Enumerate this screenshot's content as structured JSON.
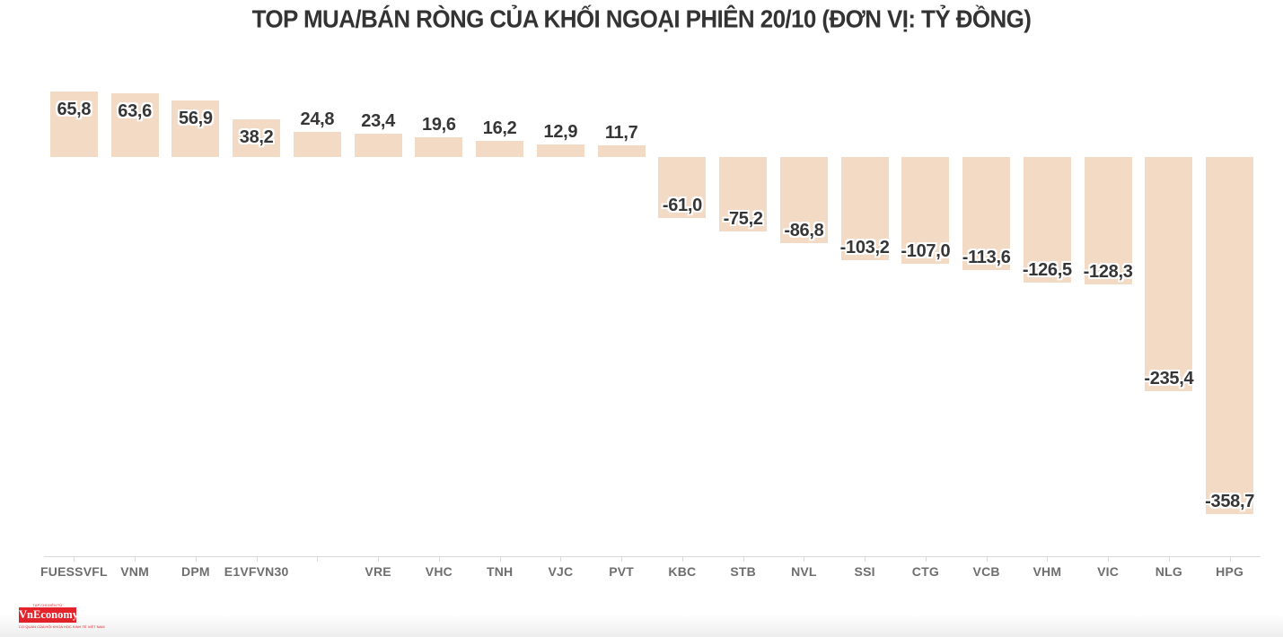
{
  "header": {
    "title": "TOP MUA/BÁN RÒNG CỦA KHỐI NGOẠI PHIÊN 20/10 (ĐƠN VỊ: TỶ ĐỒNG)"
  },
  "chart_data": {
    "type": "bar",
    "title": "TOP MUA/BÁN RÒNG CỦA KHỐI NGOẠI PHIÊN 20/10 (ĐƠN VỊ: TỶ ĐỒNG)",
    "unit": "tỷ đồng",
    "categories": [
      "FUESSVFL",
      "VNM",
      "DPM",
      "E1VFVN30",
      "",
      "VRE",
      "VHC",
      "TNH",
      "VJC",
      "PVT",
      "KBC",
      "STB",
      "NVL",
      "SSI",
      "CTG",
      "VCB",
      "VHM",
      "VIC",
      "NLG",
      "HPG"
    ],
    "values": [
      65.8,
      63.6,
      56.9,
      38.2,
      24.8,
      23.4,
      19.6,
      16.2,
      12.9,
      11.7,
      -61.0,
      -75.2,
      -86.8,
      -103.2,
      -107.0,
      -113.6,
      -126.5,
      -128.3,
      -235.4,
      -358.7
    ],
    "value_labels": [
      "65,8",
      "63,6",
      "56,9",
      "38,2",
      "24,8",
      "23,4",
      "19,6",
      "16,2",
      "12,9",
      "11,7",
      "-61,0",
      "-75,2",
      "-86,8",
      "-103,2",
      "-107,0",
      "-113,6",
      "-126,5",
      "-128,3",
      "-235,4",
      "-358,7"
    ],
    "ylim": [
      -380,
      80
    ],
    "grid": false,
    "legend": "none",
    "colors": {
      "bar": "#f3dac5",
      "value_label": "#363636",
      "axis_label": "#6e6e6e",
      "axis_line": "#d9d9d9",
      "title": "#333333"
    }
  },
  "footer": {
    "logo": {
      "name": "VnEconomy",
      "tagline_top": "TẠP CHÍ ĐIỆN TỬ",
      "tagline_bottom": "CƠ QUAN CỦA HỘI KHOA HỌC KINH TẾ VIỆT NAM",
      "brand_color": "#e5232b"
    }
  }
}
